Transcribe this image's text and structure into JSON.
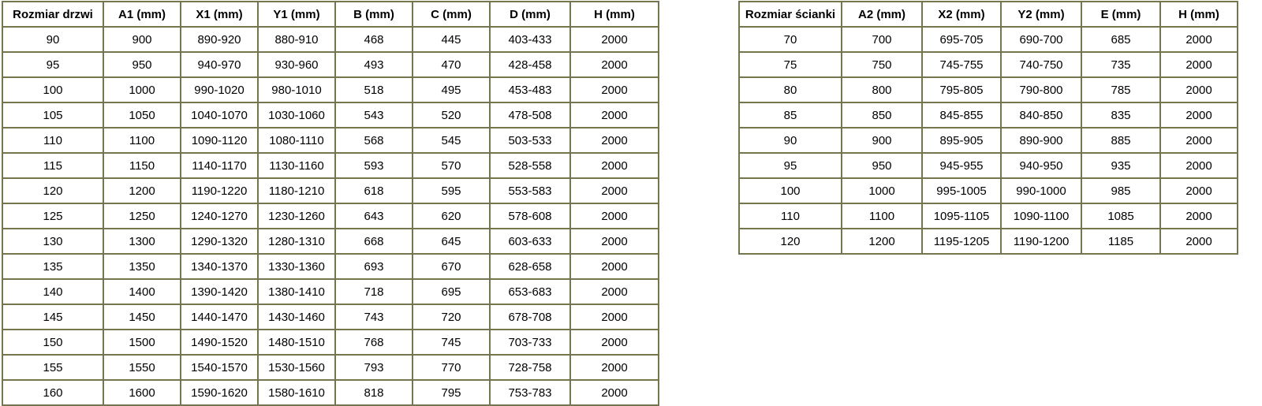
{
  "page": {
    "background_color": "#ffffff",
    "table_border_color": "#75754e",
    "text_color": "#000000"
  },
  "tables": [
    {
      "name": "door-size-table",
      "headers": [
        "Rozmiar drzwi",
        "A1 (mm)",
        "X1 (mm)",
        "Y1 (mm)",
        "B (mm)",
        "C (mm)",
        "D (mm)",
        "H (mm)"
      ],
      "rows": [
        [
          "90",
          "900",
          "890-920",
          "880-910",
          "468",
          "445",
          "403-433",
          "2000"
        ],
        [
          "95",
          "950",
          "940-970",
          "930-960",
          "493",
          "470",
          "428-458",
          "2000"
        ],
        [
          "100",
          "1000",
          "990-1020",
          "980-1010",
          "518",
          "495",
          "453-483",
          "2000"
        ],
        [
          "105",
          "1050",
          "1040-1070",
          "1030-1060",
          "543",
          "520",
          "478-508",
          "2000"
        ],
        [
          "110",
          "1100",
          "1090-1120",
          "1080-1110",
          "568",
          "545",
          "503-533",
          "2000"
        ],
        [
          "115",
          "1150",
          "1140-1170",
          "1130-1160",
          "593",
          "570",
          "528-558",
          "2000"
        ],
        [
          "120",
          "1200",
          "1190-1220",
          "1180-1210",
          "618",
          "595",
          "553-583",
          "2000"
        ],
        [
          "125",
          "1250",
          "1240-1270",
          "1230-1260",
          "643",
          "620",
          "578-608",
          "2000"
        ],
        [
          "130",
          "1300",
          "1290-1320",
          "1280-1310",
          "668",
          "645",
          "603-633",
          "2000"
        ],
        [
          "135",
          "1350",
          "1340-1370",
          "1330-1360",
          "693",
          "670",
          "628-658",
          "2000"
        ],
        [
          "140",
          "1400",
          "1390-1420",
          "1380-1410",
          "718",
          "695",
          "653-683",
          "2000"
        ],
        [
          "145",
          "1450",
          "1440-1470",
          "1430-1460",
          "743",
          "720",
          "678-708",
          "2000"
        ],
        [
          "150",
          "1500",
          "1490-1520",
          "1480-1510",
          "768",
          "745",
          "703-733",
          "2000"
        ],
        [
          "155",
          "1550",
          "1540-1570",
          "1530-1560",
          "793",
          "770",
          "728-758",
          "2000"
        ],
        [
          "160",
          "1600",
          "1590-1620",
          "1580-1610",
          "818",
          "795",
          "753-783",
          "2000"
        ]
      ]
    },
    {
      "name": "wall-size-table",
      "headers": [
        "Rozmiar ścianki",
        "A2 (mm)",
        "X2 (mm)",
        "Y2 (mm)",
        "E (mm)",
        "H (mm)"
      ],
      "rows": [
        [
          "70",
          "700",
          "695-705",
          "690-700",
          "685",
          "2000"
        ],
        [
          "75",
          "750",
          "745-755",
          "740-750",
          "735",
          "2000"
        ],
        [
          "80",
          "800",
          "795-805",
          "790-800",
          "785",
          "2000"
        ],
        [
          "85",
          "850",
          "845-855",
          "840-850",
          "835",
          "2000"
        ],
        [
          "90",
          "900",
          "895-905",
          "890-900",
          "885",
          "2000"
        ],
        [
          "95",
          "950",
          "945-955",
          "940-950",
          "935",
          "2000"
        ],
        [
          "100",
          "1000",
          "995-1005",
          "990-1000",
          "985",
          "2000"
        ],
        [
          "110",
          "1100",
          "1095-1105",
          "1090-1100",
          "1085",
          "2000"
        ],
        [
          "120",
          "1200",
          "1195-1205",
          "1190-1200",
          "1185",
          "2000"
        ]
      ]
    }
  ]
}
